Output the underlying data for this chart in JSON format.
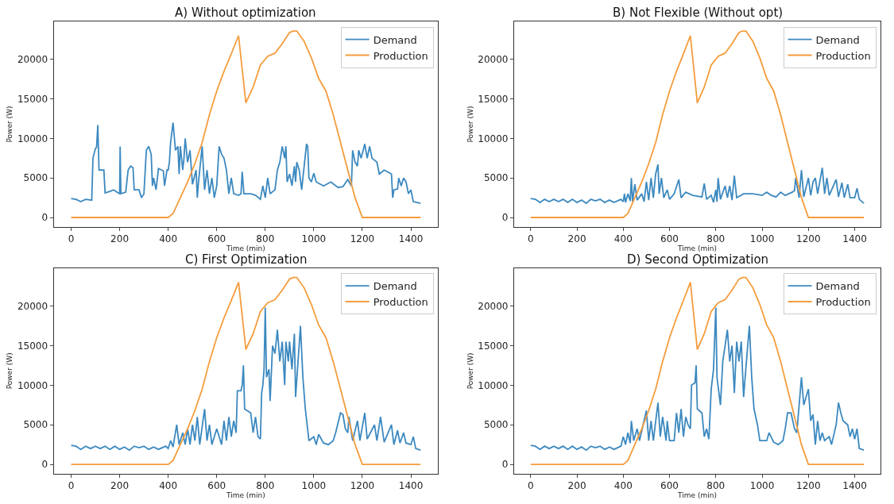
{
  "chart_data": [
    {
      "type": "line",
      "title": "A) Without optimization",
      "xlabel": "Time (min)",
      "ylabel": "Power (W)",
      "xlim": [
        -72,
        1512
      ],
      "ylim": [
        -1180,
        24780
      ],
      "xticks": [
        0,
        200,
        400,
        600,
        800,
        1000,
        1200,
        1400
      ],
      "yticks": [
        0,
        5000,
        10000,
        15000,
        20000
      ],
      "legend": "top right",
      "series": [
        {
          "name": "Demand",
          "color": "#3c89c0",
          "x": [
            0,
            20,
            40,
            60,
            85,
            90,
            100,
            105,
            110,
            115,
            135,
            140,
            160,
            175,
            200,
            202,
            205,
            225,
            235,
            245,
            255,
            260,
            280,
            290,
            300,
            310,
            320,
            330,
            335,
            340,
            350,
            360,
            380,
            385,
            395,
            400,
            405,
            410,
            420,
            430,
            440,
            445,
            450,
            460,
            465,
            470,
            480,
            490,
            500,
            515,
            520,
            525,
            540,
            550,
            560,
            570,
            580,
            590,
            600,
            610,
            620,
            630,
            640,
            650,
            660,
            670,
            690,
            700,
            705,
            712,
            740,
            760,
            780,
            790,
            800,
            810,
            820,
            840,
            850,
            860,
            870,
            880,
            885,
            890,
            900,
            910,
            920,
            925,
            930,
            940,
            950,
            970,
            975,
            980,
            990,
            1000,
            1010,
            1040,
            1070,
            1100,
            1120,
            1140,
            1155,
            1160,
            1170,
            1180,
            1185,
            1195,
            1210,
            1220,
            1230,
            1240,
            1260,
            1270,
            1290,
            1320,
            1325,
            1330,
            1345,
            1350,
            1360,
            1370,
            1380,
            1390,
            1400,
            1410,
            1440
          ],
          "values": [
            2400,
            2300,
            2000,
            2300,
            2200,
            7500,
            8700,
            8900,
            11700,
            6000,
            6000,
            3100,
            3300,
            3500,
            3000,
            9000,
            3000,
            3200,
            6000,
            6500,
            6300,
            3500,
            3500,
            2500,
            3000,
            8500,
            9000,
            8000,
            4000,
            5000,
            3500,
            6200,
            5900,
            4000,
            6000,
            6000,
            7000,
            9500,
            12000,
            8500,
            9000,
            5500,
            9000,
            6000,
            7500,
            10000,
            7000,
            8500,
            4200,
            6000,
            2500,
            4500,
            9000,
            3500,
            6000,
            3000,
            5000,
            2500,
            4000,
            9000,
            8000,
            7500,
            6000,
            3000,
            5000,
            3000,
            2800,
            3000,
            5800,
            3000,
            3000,
            2800,
            2300,
            4000,
            2500,
            5000,
            3000,
            3500,
            6000,
            7000,
            9000,
            7500,
            9000,
            4500,
            5500,
            4000,
            6500,
            4500,
            7000,
            6000,
            3500,
            9300,
            9000,
            5000,
            4500,
            5600,
            4500,
            4000,
            4500,
            3800,
            3900,
            4800,
            4000,
            8500,
            7000,
            6500,
            8500,
            7500,
            9300,
            7500,
            9000,
            7500,
            7000,
            5500,
            6000,
            5500,
            2500,
            3500,
            3600,
            5000,
            4000,
            5000,
            4500,
            3000,
            3500,
            2000,
            1800
          ]
        },
        {
          "name": "Production",
          "color": "#f59c3c",
          "x": [
            0,
            400,
            420,
            450,
            480,
            510,
            540,
            570,
            600,
            630,
            660,
            690,
            720,
            750,
            780,
            810,
            840,
            870,
            900,
            915,
            930,
            960,
            990,
            1020,
            1050,
            1080,
            1110,
            1140,
            1170,
            1200,
            1440
          ],
          "values": [
            0,
            0,
            500,
            2500,
            4500,
            6800,
            9500,
            13000,
            16000,
            18500,
            20700,
            23000,
            14500,
            16500,
            19300,
            20400,
            20800,
            22000,
            23400,
            23600,
            23600,
            22300,
            20200,
            17600,
            16000,
            13000,
            9500,
            6000,
            2500,
            0,
            0
          ]
        }
      ]
    },
    {
      "type": "line",
      "title": "B) Not Flexible (Without opt)",
      "xlabel": "Time (min)",
      "ylabel": "Power (W)",
      "xlim": [
        -72,
        1512
      ],
      "ylim": [
        -1180,
        24780
      ],
      "xticks": [
        0,
        200,
        400,
        600,
        800,
        1000,
        1200,
        1400
      ],
      "yticks": [
        0,
        5000,
        10000,
        15000,
        20000
      ],
      "legend": "top right",
      "series": [
        {
          "name": "Demand",
          "color": "#3c89c0",
          "x": [
            0,
            20,
            40,
            60,
            80,
            100,
            120,
            140,
            160,
            180,
            200,
            220,
            240,
            260,
            280,
            300,
            320,
            340,
            360,
            390,
            400,
            405,
            410,
            420,
            430,
            435,
            440,
            450,
            460,
            480,
            490,
            500,
            510,
            520,
            530,
            540,
            550,
            555,
            565,
            575,
            590,
            600,
            620,
            640,
            650,
            670,
            700,
            740,
            750,
            760,
            780,
            790,
            800,
            805,
            810,
            820,
            840,
            850,
            860,
            870,
            880,
            890,
            920,
            960,
            1000,
            1020,
            1040,
            1060,
            1080,
            1100,
            1130,
            1140,
            1145,
            1160,
            1170,
            1180,
            1200,
            1210,
            1220,
            1230,
            1240,
            1260,
            1270,
            1280,
            1290,
            1320,
            1330,
            1345,
            1355,
            1370,
            1380,
            1400,
            1410,
            1420,
            1440
          ],
          "values": [
            2400,
            2300,
            1900,
            2300,
            2000,
            2300,
            2000,
            2300,
            1900,
            2300,
            1900,
            2200,
            1800,
            2300,
            2100,
            2300,
            1900,
            2200,
            1900,
            2300,
            2000,
            3000,
            1900,
            3000,
            2100,
            5000,
            2000,
            4200,
            2200,
            3000,
            2000,
            4500,
            2200,
            5000,
            2500,
            5500,
            6700,
            3000,
            5000,
            2500,
            3500,
            2300,
            3000,
            4800,
            2500,
            3200,
            2800,
            2600,
            4300,
            2300,
            2800,
            1900,
            3500,
            2000,
            5000,
            2300,
            4000,
            2500,
            4000,
            2200,
            5300,
            2500,
            3000,
            3000,
            2800,
            3200,
            2800,
            2600,
            3200,
            2800,
            3200,
            3400,
            5000,
            2500,
            6000,
            2600,
            5000,
            2800,
            4500,
            5000,
            3000,
            6300,
            3000,
            5000,
            2800,
            4800,
            2600,
            4400,
            2500,
            4200,
            2500,
            2500,
            3700,
            2300,
            1800
          ]
        },
        {
          "name": "Production",
          "color": "#f59c3c",
          "x": [
            0,
            400,
            420,
            450,
            480,
            510,
            540,
            570,
            600,
            630,
            660,
            690,
            720,
            750,
            780,
            810,
            840,
            870,
            900,
            915,
            930,
            960,
            990,
            1020,
            1050,
            1080,
            1110,
            1140,
            1170,
            1200,
            1440
          ],
          "values": [
            0,
            0,
            500,
            2500,
            4500,
            6800,
            9500,
            13000,
            16000,
            18500,
            20700,
            23000,
            14500,
            16500,
            19300,
            20400,
            20800,
            22000,
            23400,
            23600,
            23600,
            22300,
            20200,
            17600,
            16000,
            13000,
            9500,
            6000,
            2500,
            0,
            0
          ]
        }
      ]
    },
    {
      "type": "line",
      "title": "C) First Optimization",
      "xlabel": "Time (min)",
      "ylabel": "Power (W)",
      "xlim": [
        -72,
        1512
      ],
      "ylim": [
        -1180,
        24780
      ],
      "xticks": [
        0,
        200,
        400,
        600,
        800,
        1000,
        1200,
        1400
      ],
      "yticks": [
        0,
        5000,
        10000,
        15000,
        20000
      ],
      "legend": "top right",
      "series": [
        {
          "name": "Demand",
          "color": "#3c89c0",
          "x": [
            0,
            20,
            40,
            60,
            80,
            100,
            120,
            140,
            160,
            180,
            200,
            220,
            240,
            260,
            280,
            300,
            320,
            340,
            360,
            390,
            400,
            410,
            420,
            435,
            445,
            460,
            470,
            480,
            490,
            500,
            510,
            520,
            530,
            550,
            560,
            570,
            580,
            600,
            620,
            630,
            640,
            650,
            660,
            670,
            680,
            685,
            700,
            705,
            710,
            715,
            740,
            750,
            760,
            770,
            780,
            785,
            790,
            795,
            800,
            805,
            815,
            820,
            830,
            840,
            850,
            860,
            870,
            880,
            885,
            895,
            900,
            910,
            920,
            925,
            935,
            945,
            955,
            965,
            980,
            1000,
            1010,
            1020,
            1040,
            1060,
            1080,
            1090,
            1110,
            1120,
            1130,
            1140,
            1145,
            1160,
            1180,
            1190,
            1210,
            1220,
            1250,
            1260,
            1275,
            1290,
            1320,
            1330,
            1345,
            1355,
            1370,
            1380,
            1400,
            1410,
            1420,
            1440
          ],
          "values": [
            2400,
            2300,
            1900,
            2300,
            2000,
            2300,
            2000,
            2300,
            1900,
            2300,
            1900,
            2200,
            1800,
            2300,
            2100,
            2300,
            1900,
            2200,
            1900,
            2300,
            2000,
            3000,
            2200,
            5000,
            2500,
            4000,
            2500,
            4500,
            2500,
            5000,
            3000,
            6000,
            2500,
            7000,
            3000,
            5000,
            2500,
            4500,
            2500,
            5500,
            3000,
            6000,
            3500,
            5500,
            4000,
            9300,
            9300,
            10000,
            12500,
            7000,
            6500,
            4000,
            6000,
            3500,
            3200,
            9000,
            10000,
            12000,
            19800,
            11000,
            12000,
            8000,
            15000,
            14000,
            17000,
            13000,
            15500,
            10000,
            15500,
            13000,
            15500,
            12000,
            16500,
            8500,
            13000,
            17500,
            11000,
            7000,
            3000,
            3500,
            2500,
            3800,
            2700,
            2500,
            3000,
            4000,
            6500,
            6300,
            4500,
            4000,
            6000,
            3000,
            5500,
            3000,
            6500,
            3200,
            5000,
            3000,
            6000,
            2800,
            5000,
            2500,
            4300,
            2700,
            4000,
            2700,
            2500,
            3500,
            2000,
            1800
          ]
        },
        {
          "name": "Production",
          "color": "#f59c3c",
          "x": [
            0,
            400,
            420,
            450,
            480,
            510,
            540,
            570,
            600,
            630,
            660,
            690,
            720,
            750,
            780,
            810,
            840,
            870,
            900,
            915,
            930,
            960,
            990,
            1020,
            1050,
            1080,
            1110,
            1140,
            1170,
            1200,
            1440
          ],
          "values": [
            0,
            0,
            500,
            2500,
            4500,
            6800,
            9500,
            13000,
            16000,
            18500,
            20700,
            23000,
            14500,
            16500,
            19300,
            20400,
            20800,
            22000,
            23400,
            23600,
            23600,
            22300,
            20200,
            17600,
            16000,
            13000,
            9500,
            6000,
            2500,
            0,
            0
          ]
        }
      ]
    },
    {
      "type": "line",
      "title": "D) Second Optimization",
      "xlabel": "Time (min)",
      "ylabel": "Power (W)",
      "xlim": [
        -72,
        1512
      ],
      "ylim": [
        -1180,
        24780
      ],
      "xticks": [
        0,
        200,
        400,
        600,
        800,
        1000,
        1200,
        1400
      ],
      "yticks": [
        0,
        5000,
        10000,
        15000,
        20000
      ],
      "legend": "top right",
      "series": [
        {
          "name": "Demand",
          "color": "#3c89c0",
          "x": [
            0,
            20,
            40,
            60,
            80,
            100,
            120,
            140,
            160,
            180,
            200,
            220,
            240,
            260,
            280,
            300,
            320,
            340,
            360,
            390,
            400,
            410,
            420,
            430,
            435,
            445,
            460,
            470,
            500,
            510,
            520,
            530,
            550,
            560,
            570,
            585,
            590,
            600,
            620,
            630,
            640,
            650,
            660,
            670,
            680,
            690,
            695,
            710,
            715,
            720,
            740,
            750,
            760,
            770,
            780,
            790,
            800,
            805,
            820,
            830,
            850,
            860,
            870,
            880,
            890,
            900,
            910,
            920,
            935,
            945,
            955,
            965,
            980,
            990,
            1020,
            1030,
            1050,
            1070,
            1090,
            1100,
            1110,
            1125,
            1140,
            1150,
            1160,
            1170,
            1180,
            1190,
            1200,
            1210,
            1220,
            1230,
            1240,
            1250,
            1260,
            1270,
            1290,
            1300,
            1320,
            1330,
            1340,
            1350,
            1370,
            1380,
            1390,
            1400,
            1410,
            1420,
            1440
          ],
          "values": [
            2400,
            2300,
            1900,
            2300,
            2000,
            2300,
            2000,
            2300,
            1900,
            2300,
            1900,
            2200,
            1800,
            2300,
            2100,
            2300,
            1900,
            2200,
            1900,
            2300,
            3500,
            2500,
            4000,
            2700,
            5500,
            3000,
            4500,
            3000,
            6800,
            3000,
            5500,
            3000,
            7800,
            3500,
            6000,
            3000,
            5500,
            3000,
            3000,
            6500,
            4000,
            7000,
            3500,
            6000,
            5000,
            4500,
            10000,
            10300,
            12500,
            7000,
            6500,
            3500,
            4500,
            3200,
            9500,
            12000,
            19800,
            11000,
            7500,
            13000,
            17000,
            13000,
            15000,
            9000,
            15500,
            13000,
            15500,
            8500,
            14000,
            17500,
            11000,
            7000,
            5000,
            3000,
            3000,
            4000,
            2800,
            2500,
            3000,
            4500,
            6500,
            6500,
            4500,
            4000,
            7500,
            11000,
            7500,
            8500,
            9500,
            5500,
            6300,
            2500,
            5500,
            3000,
            4000,
            3000,
            3500,
            2500,
            5000,
            7800,
            6500,
            5500,
            5000,
            3500,
            4500,
            3200,
            4500,
            2000,
            1800
          ]
        },
        {
          "name": "Production",
          "color": "#f59c3c",
          "x": [
            0,
            400,
            420,
            450,
            480,
            510,
            540,
            570,
            600,
            630,
            660,
            690,
            720,
            750,
            780,
            810,
            840,
            870,
            900,
            915,
            930,
            960,
            990,
            1020,
            1050,
            1080,
            1110,
            1140,
            1170,
            1200,
            1440
          ],
          "values": [
            0,
            0,
            500,
            2500,
            4500,
            6800,
            9500,
            13000,
            16000,
            18500,
            20700,
            23000,
            14500,
            16500,
            19300,
            20400,
            20800,
            22000,
            23400,
            23600,
            23600,
            22300,
            20200,
            17600,
            16000,
            13000,
            9500,
            6000,
            2500,
            0,
            0
          ]
        }
      ]
    }
  ]
}
